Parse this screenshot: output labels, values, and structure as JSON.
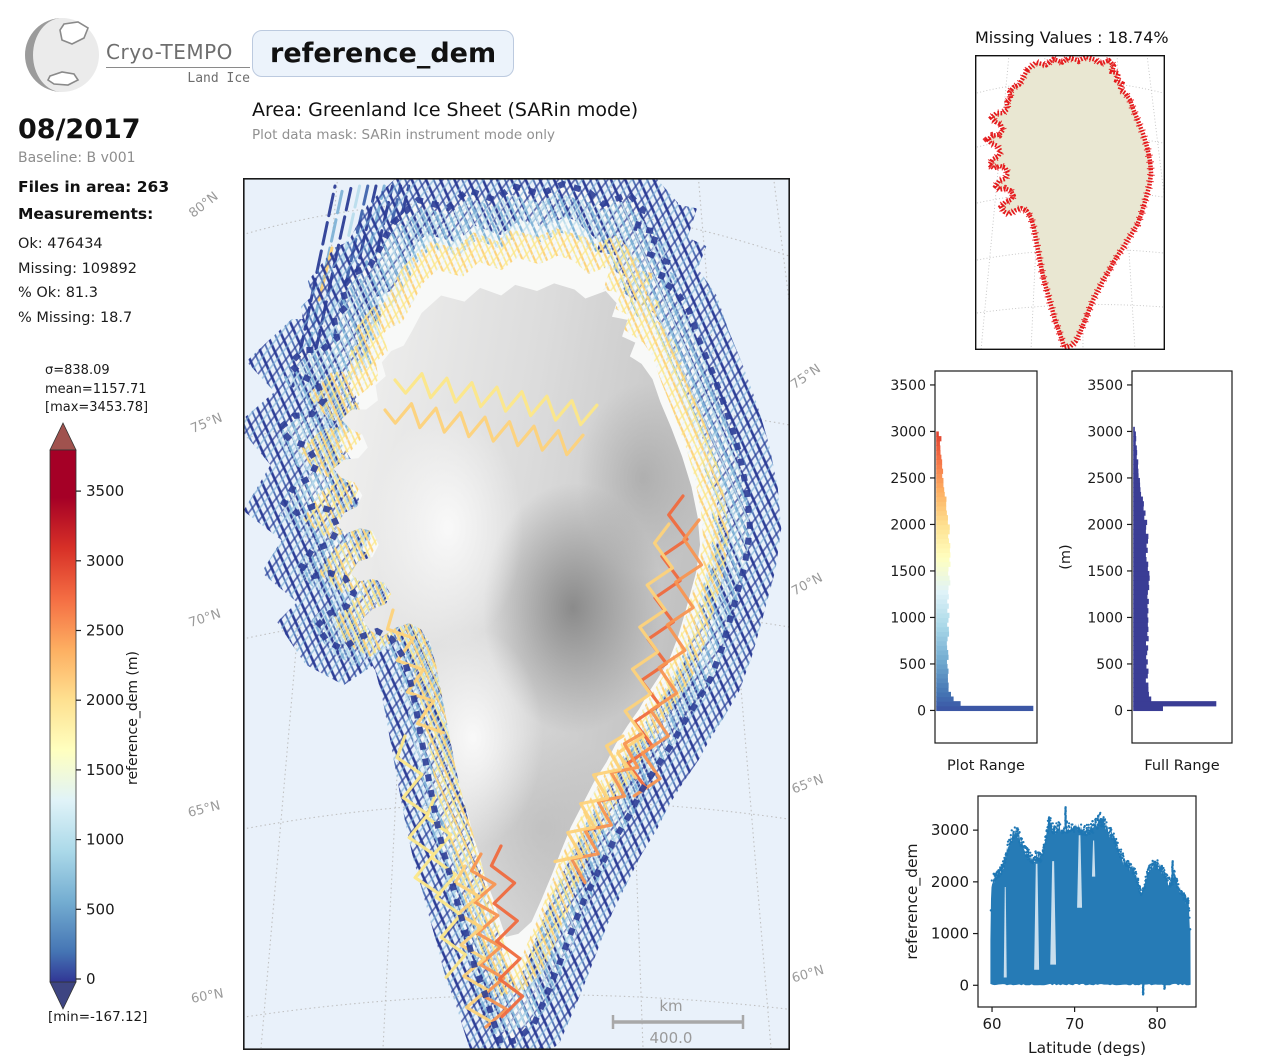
{
  "logo": {
    "title": "Cryo-TEMPO",
    "subtitle": "Land Ice"
  },
  "header": {
    "variable_box": "reference_dem",
    "area": "Area: Greenland Ice Sheet (SARin mode)",
    "mask": "Plot data mask: SARin instrument mode only"
  },
  "sidebar": {
    "date": "08/2017",
    "baseline": "Baseline: B v001",
    "files": "Files in area: 263",
    "measurements_label": "Measurements:",
    "stats": [
      "Ok: 476434",
      "Missing: 109892",
      "% Ok: 81.3",
      "% Missing: 18.7"
    ]
  },
  "colorbar": {
    "sigma": "σ=838.09",
    "mean": "mean=1157.71",
    "max": "[max=3453.78]",
    "min": "[min=-167.12]",
    "axis_label": "reference_dem (m)",
    "ticks": [
      0,
      500,
      1000,
      1500,
      2000,
      2500,
      3000,
      3500
    ],
    "vmin": -167.12,
    "vmax": 3453.78,
    "colormap": [
      "#313695",
      "#4575b4",
      "#74add1",
      "#abd9e9",
      "#e0f3f8",
      "#ffffbf",
      "#fee090",
      "#fdae61",
      "#f46d43",
      "#d73027",
      "#a50026"
    ],
    "under_color": "#3e4582",
    "over_color": "#a0524e"
  },
  "map": {
    "ocean_color": "#e9f1fa",
    "grid_color": "#bcbcbc",
    "lat_labels_left": [
      "80°N",
      "75°N",
      "70°N",
      "65°N",
      "60°N"
    ],
    "lat_labels_right": [
      "75°N",
      "70°N",
      "65°N",
      "60°N"
    ],
    "scalebar_unit": "km",
    "scalebar_value": "400.0",
    "track_colors": {
      "deep": "#2c3d96",
      "blue": "#3f63ad",
      "steel": "#7fb2d6",
      "light": "#b9dcec",
      "pale": "#e3f2f8",
      "yellow": "#fce788",
      "gold": "#fdd27a",
      "orange": "#f89552",
      "deep_orange": "#ef6a3e"
    }
  },
  "missing_map": {
    "title": "Missing Values : 18.74%",
    "land_color": "#e9e7d2",
    "missing_color": "#e41a1c"
  },
  "chart_data": [
    {
      "id": "plot_range_hist",
      "type": "bar",
      "orientation": "horizontal",
      "xlabel": "Plot Range",
      "ylabel": "",
      "ylim": [
        -350,
        3650
      ],
      "yticks": [
        0,
        500,
        1000,
        1500,
        2000,
        2500,
        3000,
        3500
      ],
      "bin_start_m": 0,
      "bin_width_m": 50,
      "grid": false,
      "color_by": "elevation_colormap",
      "values": [
        1.0,
        0.26,
        0.17,
        0.15,
        0.14,
        0.13,
        0.13,
        0.12,
        0.12,
        0.12,
        0.12,
        0.12,
        0.12,
        0.12,
        0.12,
        0.12,
        0.13,
        0.13,
        0.13,
        0.13,
        0.13,
        0.13,
        0.13,
        0.13,
        0.14,
        0.14,
        0.14,
        0.14,
        0.14,
        0.14,
        0.14,
        0.14,
        0.14,
        0.14,
        0.15,
        0.15,
        0.15,
        0.14,
        0.14,
        0.14,
        0.13,
        0.12,
        0.12,
        0.11,
        0.1,
        0.1,
        0.09,
        0.09,
        0.08,
        0.08,
        0.07,
        0.07,
        0.06,
        0.06,
        0.05,
        0.05,
        0.04,
        0.04,
        0.05,
        0.03
      ]
    },
    {
      "id": "full_range_hist",
      "type": "bar",
      "orientation": "horizontal",
      "xlabel": "Full Range",
      "ylabel": "(m)",
      "ylim": [
        -350,
        3650
      ],
      "yticks": [
        0,
        500,
        1000,
        1500,
        2000,
        2500,
        3000,
        3500
      ],
      "bin_start_m": 0,
      "bin_width_m": 50,
      "grid": false,
      "bar_color": "#3a3d95",
      "values": [
        0.35,
        1.0,
        0.2,
        0.17,
        0.16,
        0.15,
        0.15,
        0.15,
        0.15,
        0.15,
        0.15,
        0.15,
        0.15,
        0.15,
        0.15,
        0.15,
        0.15,
        0.15,
        0.16,
        0.16,
        0.16,
        0.16,
        0.16,
        0.16,
        0.16,
        0.16,
        0.16,
        0.16,
        0.16,
        0.16,
        0.16,
        0.16,
        0.15,
        0.15,
        0.15,
        0.15,
        0.15,
        0.15,
        0.15,
        0.14,
        0.14,
        0.13,
        0.12,
        0.12,
        0.11,
        0.1,
        0.09,
        0.08,
        0.08,
        0.07,
        0.06,
        0.06,
        0.05,
        0.05,
        0.04,
        0.04,
        0.04,
        0.03,
        0.03,
        0.03,
        0.02
      ]
    },
    {
      "id": "lat_scatter",
      "type": "scatter",
      "xlabel": "Latitude (degs)",
      "ylabel": "reference_dem",
      "xlim": [
        58.3,
        84.7
      ],
      "ylim": [
        -420,
        3660
      ],
      "xticks": [
        60,
        70,
        80
      ],
      "yticks": [
        0,
        1000,
        2000,
        3000
      ],
      "point_color": "#1f77b4",
      "envelope_lat": [
        59.75,
        59.9,
        60.1,
        60.4,
        60.8,
        61.2,
        61.6,
        62.0,
        62.4,
        62.8,
        63.1,
        63.5,
        64.0,
        64.5,
        65.0,
        65.4,
        65.8,
        66.2,
        66.6,
        66.9,
        67.2,
        67.6,
        68.0,
        68.5,
        69.0,
        69.4,
        69.8,
        70.2,
        70.7,
        71.2,
        71.7,
        72.2,
        72.7,
        73.1,
        73.5,
        74.0,
        74.5,
        75.0,
        75.5,
        76.0,
        76.5,
        77.0,
        77.5,
        78.0,
        78.4,
        78.8,
        79.2,
        79.7,
        80.2,
        80.7,
        81.2,
        81.7,
        82.1,
        82.5,
        83.0,
        83.4,
        83.8,
        84.05
      ],
      "envelope_max_m": [
        300,
        1900,
        2050,
        2100,
        2150,
        2250,
        2450,
        2700,
        2880,
        2950,
        2920,
        2780,
        2600,
        2500,
        2400,
        2520,
        2450,
        2550,
        2900,
        3180,
        3050,
        3000,
        3050,
        3000,
        3050,
        3000,
        3050,
        3100,
        3050,
        2950,
        3000,
        3050,
        3120,
        3200,
        3150,
        3000,
        2900,
        2750,
        2550,
        2420,
        2300,
        2250,
        2100,
        1780,
        1850,
        2200,
        2300,
        2350,
        2300,
        2200,
        2050,
        1950,
        2150,
        1900,
        1750,
        1680,
        1600,
        900
      ],
      "spikes": [
        {
          "lat": 66.9,
          "from": 3050,
          "to": 3260
        },
        {
          "lat": 68.9,
          "from": 3050,
          "to": 3450
        },
        {
          "lat": 81.85,
          "from": 1950,
          "to": 2420
        }
      ],
      "below_zero": [
        {
          "lat": 78.3,
          "from": 0,
          "to": -180
        },
        {
          "lat": 80.9,
          "from": 0,
          "to": -70
        }
      ],
      "gaps": [
        {
          "lat": 61.6,
          "from": 150,
          "to": 1900,
          "w": 0.18
        },
        {
          "lat": 65.4,
          "from": 300,
          "to": 2350,
          "w": 0.3
        },
        {
          "lat": 67.4,
          "from": 400,
          "to": 2400,
          "w": 0.35
        },
        {
          "lat": 70.6,
          "from": 1500,
          "to": 2900,
          "w": 0.3
        },
        {
          "lat": 72.3,
          "from": 2100,
          "to": 2800,
          "w": 0.2
        }
      ]
    }
  ]
}
